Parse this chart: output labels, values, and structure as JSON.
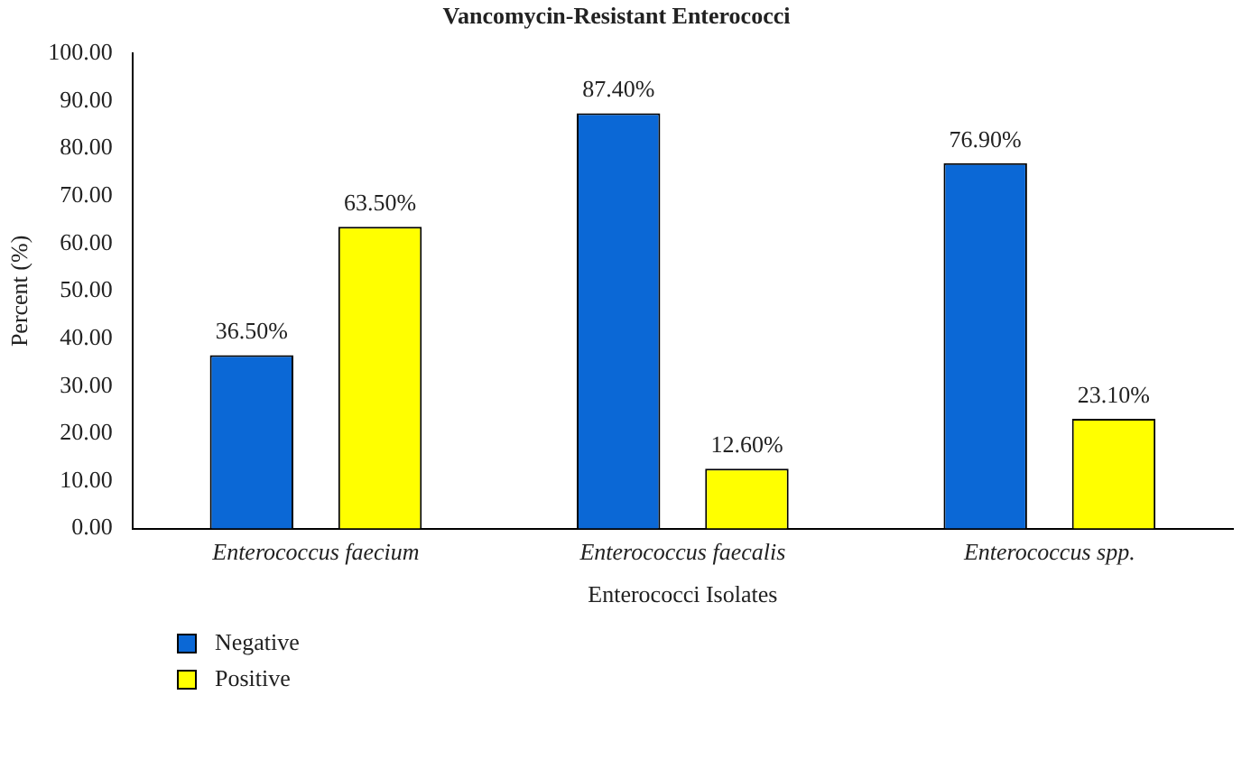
{
  "chart_data": {
    "type": "bar",
    "title": "Vancomycin-Resistant Enterococci",
    "xlabel": "Enterococci Isolates",
    "ylabel": "Percent (%)",
    "categories": [
      "Enterococcus faecium",
      "Enterococcus faecalis",
      "Enterococcus spp."
    ],
    "series": [
      {
        "name": "Negative",
        "color": "#0b68d6",
        "values": [
          36.5,
          87.4,
          76.9
        ],
        "value_labels": [
          "36.50%",
          "87.40%",
          "76.90%"
        ]
      },
      {
        "name": "Positive",
        "color": "#ffff00",
        "values": [
          63.5,
          12.6,
          23.1
        ],
        "value_labels": [
          "63.50%",
          "12.60%",
          "23.10%"
        ]
      }
    ],
    "ylim": [
      0,
      100
    ],
    "yticks": [
      {
        "value": 0,
        "label": "0.00"
      },
      {
        "value": 10,
        "label": "10.00"
      },
      {
        "value": 20,
        "label": "20.00"
      },
      {
        "value": 30,
        "label": "30.00"
      },
      {
        "value": 40,
        "label": "40.00"
      },
      {
        "value": 50,
        "label": "50.00"
      },
      {
        "value": 60,
        "label": "60.00"
      },
      {
        "value": 70,
        "label": "70.00"
      },
      {
        "value": 80,
        "label": "80.00"
      },
      {
        "value": 90,
        "label": "90.00"
      },
      {
        "value": 100,
        "label": "100.00"
      }
    ],
    "grid": false,
    "legend": "bottom left"
  }
}
